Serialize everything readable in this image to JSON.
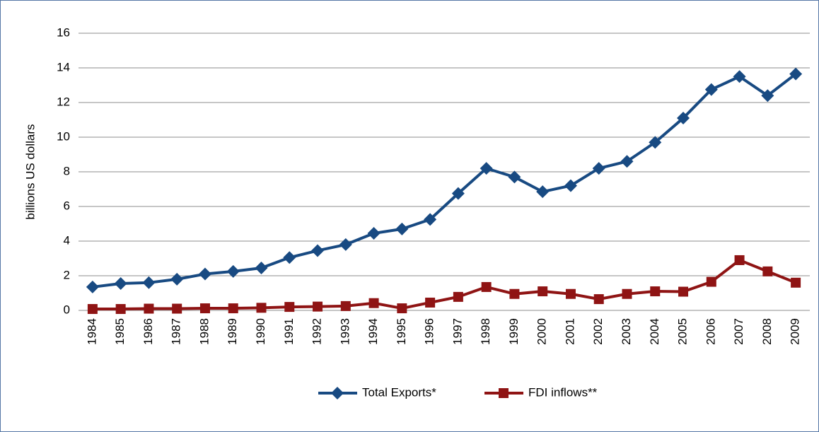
{
  "chart_data": {
    "type": "line",
    "y_label": "billions US dollars",
    "categories": [
      "1984",
      "1985",
      "1986",
      "1987",
      "1988",
      "1989",
      "1990",
      "1991",
      "1992",
      "1993",
      "1994",
      "1995",
      "1996",
      "1997",
      "1998",
      "1999",
      "2000",
      "2001",
      "2002",
      "2003",
      "2004",
      "2005",
      "2006",
      "2007",
      "2008",
      "2009"
    ],
    "series": [
      {
        "name": "Total Exports*",
        "color": "#184a82",
        "marker": "diamond",
        "values": [
          1.35,
          1.55,
          1.6,
          1.8,
          2.1,
          2.25,
          2.45,
          3.05,
          3.45,
          3.8,
          4.45,
          4.7,
          5.25,
          6.75,
          8.2,
          7.7,
          6.85,
          7.2,
          8.2,
          8.6,
          9.7,
          11.1,
          12.75,
          13.5,
          12.4,
          13.65
        ]
      },
      {
        "name": "FDI inflows**",
        "color": "#8f1414",
        "marker": "square",
        "values": [
          0.08,
          0.08,
          0.1,
          0.1,
          0.12,
          0.12,
          0.15,
          0.2,
          0.22,
          0.25,
          0.42,
          0.12,
          0.45,
          0.78,
          1.35,
          0.95,
          1.1,
          0.95,
          0.65,
          0.95,
          1.1,
          1.08,
          1.65,
          2.9,
          2.25,
          1.6
        ]
      }
    ],
    "ylim": [
      0,
      16
    ],
    "yticks": [
      0,
      2,
      4,
      6,
      8,
      10,
      12,
      14,
      16
    ],
    "grid": true,
    "legend": "bottom"
  }
}
